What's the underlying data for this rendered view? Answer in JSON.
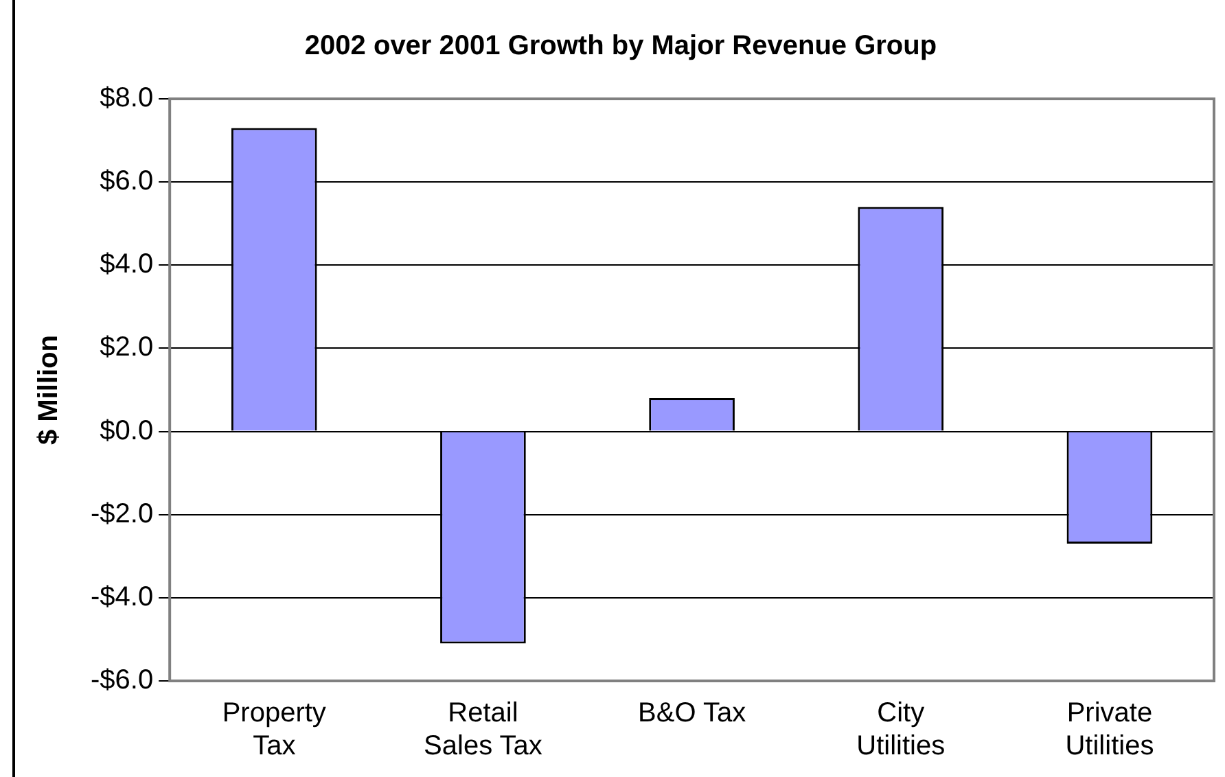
{
  "chart_data": {
    "type": "bar",
    "title": "2002 over 2001 Growth by Major Revenue Group",
    "ylabel": "$ Million",
    "categories": [
      "Property Tax",
      "Retail Sales Tax",
      "B&O Tax",
      "City Utilities",
      "Private Utilities"
    ],
    "values": [
      7.3,
      -5.1,
      0.8,
      5.4,
      -2.7
    ],
    "color": "#9999ff",
    "ylim": [
      -6,
      8
    ],
    "yticks": [
      {
        "value": -6,
        "label": "-$6.0"
      },
      {
        "value": -4,
        "label": "-$4.0"
      },
      {
        "value": -2,
        "label": "-$2.0"
      },
      {
        "value": 0,
        "label": "$0.0"
      },
      {
        "value": 2,
        "label": "$2.0"
      },
      {
        "value": 4,
        "label": "$4.0"
      },
      {
        "value": 6,
        "label": "$6.0"
      },
      {
        "value": 8,
        "label": "$8.0"
      }
    ],
    "grid": "y",
    "legend": false
  }
}
